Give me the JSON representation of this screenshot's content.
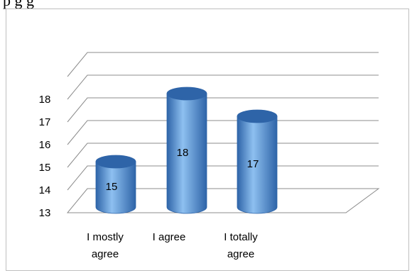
{
  "header_fragment": "p        g                  g",
  "chart_data": {
    "type": "bar",
    "style": "3d-cylinder",
    "categories": [
      "I mostly agree",
      "I agree",
      "I totally agree"
    ],
    "category_lines": [
      [
        "I mostly",
        "agree"
      ],
      [
        "I agree"
      ],
      [
        "I totally",
        "agree"
      ]
    ],
    "values": [
      15,
      18,
      17
    ],
    "data_labels": [
      "15",
      "18",
      "17"
    ],
    "yticks": [
      13,
      14,
      15,
      16,
      17,
      18
    ],
    "ylim": [
      13,
      18
    ],
    "grid": true,
    "legend": "none",
    "bar_color": "#4F8FD6",
    "bar_dark": "#2E64A8",
    "bar_light": "#8EC0F0",
    "grid_color": "#8c8c8c"
  }
}
